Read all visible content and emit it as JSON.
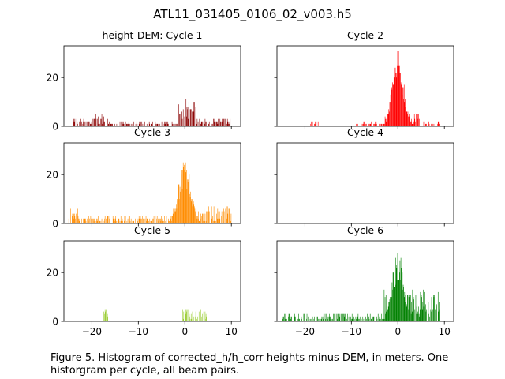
{
  "figure": {
    "title": "ATL11_031405_0106_02_v003.h5",
    "caption": "Figure 5. Histogram of corrected_h/h_corr heights minus DEM, in meters. One historgram per cycle, all beam pairs."
  },
  "chart_data": [
    {
      "type": "bar",
      "title": "height-DEM: Cycle 1",
      "color": "#8b0000",
      "xlim": [
        -26,
        12
      ],
      "ylim": [
        0,
        33
      ],
      "xticks": [
        -20,
        -10,
        0,
        10
      ],
      "yticks": [
        0,
        20
      ],
      "bin_width": 0.1,
      "xlabel": "",
      "ylabel": "",
      "segments": [
        {
          "range": [
            -24,
            -20
          ],
          "low": 1,
          "high": 3
        },
        {
          "range": [
            -20,
            -16.5
          ],
          "low": 0,
          "high": 5
        },
        {
          "range": [
            -16.5,
            -1.5
          ],
          "low": 0,
          "high": 2
        },
        {
          "range": [
            -1.5,
            2.5
          ],
          "low": 3,
          "high": 11
        },
        {
          "range": [
            2.5,
            10
          ],
          "low": 0,
          "high": 3
        }
      ]
    },
    {
      "type": "bar",
      "title": "Cycle 2",
      "color": "#ff0000",
      "xlim": [
        -26,
        12
      ],
      "ylim": [
        0,
        33
      ],
      "xticks": [
        -20,
        -10,
        0,
        10
      ],
      "yticks": [
        0,
        20
      ],
      "bin_width": 0.1,
      "xlabel": "",
      "ylabel": "",
      "peak": {
        "center": 0,
        "height": 32,
        "width": 1.2
      },
      "segments": [
        {
          "range": [
            -19,
            -17
          ],
          "low": 0,
          "high": 2
        },
        {
          "range": [
            -9,
            -3
          ],
          "low": 0,
          "high": 2
        },
        {
          "range": [
            -3,
            5
          ],
          "low": 1,
          "high": 5
        },
        {
          "range": [
            5,
            9
          ],
          "low": 0,
          "high": 2
        }
      ]
    },
    {
      "type": "bar",
      "title": "Cycle 3",
      "color": "#ff8c00",
      "xlim": [
        -26,
        12
      ],
      "ylim": [
        0,
        33
      ],
      "xticks": [
        -20,
        -10,
        0,
        10
      ],
      "yticks": [
        0,
        20
      ],
      "bin_width": 0.1,
      "xlabel": "",
      "ylabel": "",
      "peak": {
        "center": 0,
        "height": 27,
        "width": 1.3
      },
      "segments": [
        {
          "range": [
            -25,
            -23
          ],
          "low": 1,
          "high": 6
        },
        {
          "range": [
            -23,
            -3
          ],
          "low": 0,
          "high": 3
        },
        {
          "range": [
            -3,
            5
          ],
          "low": 1,
          "high": 6
        },
        {
          "range": [
            5,
            10
          ],
          "low": 1,
          "high": 7
        }
      ]
    },
    {
      "type": "bar",
      "title": "Cycle 4",
      "color": "#1f77b4",
      "xlim": [
        -26,
        12
      ],
      "ylim": [
        0,
        33
      ],
      "xticks": [
        -20,
        -10,
        0,
        10
      ],
      "yticks": [
        0,
        20
      ],
      "bin_width": 0.1,
      "xlabel": "",
      "ylabel": "",
      "segments": []
    },
    {
      "type": "bar",
      "title": "Cycle 5",
      "color": "#9acd32",
      "xlim": [
        -26,
        12
      ],
      "ylim": [
        0,
        33
      ],
      "xticks": [
        -20,
        -10,
        0,
        10
      ],
      "yticks": [
        0,
        20
      ],
      "bin_width": 0.1,
      "xlabel": "",
      "ylabel": "",
      "segments": [
        {
          "range": [
            -17.5,
            -16.5
          ],
          "low": 1,
          "high": 5
        },
        {
          "range": [
            -0.5,
            5
          ],
          "low": 1,
          "high": 5
        }
      ]
    },
    {
      "type": "bar",
      "title": "Cycle 6",
      "color": "#008000",
      "xlim": [
        -26,
        12
      ],
      "ylim": [
        0,
        33
      ],
      "xticks": [
        -20,
        -10,
        0,
        10
      ],
      "yticks": [
        0,
        20
      ],
      "bin_width": 0.1,
      "xlabel": "",
      "ylabel": "",
      "peak": {
        "center": 0,
        "height": 30,
        "width": 1.2
      },
      "segments": [
        {
          "range": [
            -25,
            -3
          ],
          "low": 0,
          "high": 3
        },
        {
          "range": [
            -3,
            6
          ],
          "low": 2,
          "high": 13
        },
        {
          "range": [
            6,
            9
          ],
          "low": 1,
          "high": 12
        }
      ]
    }
  ]
}
